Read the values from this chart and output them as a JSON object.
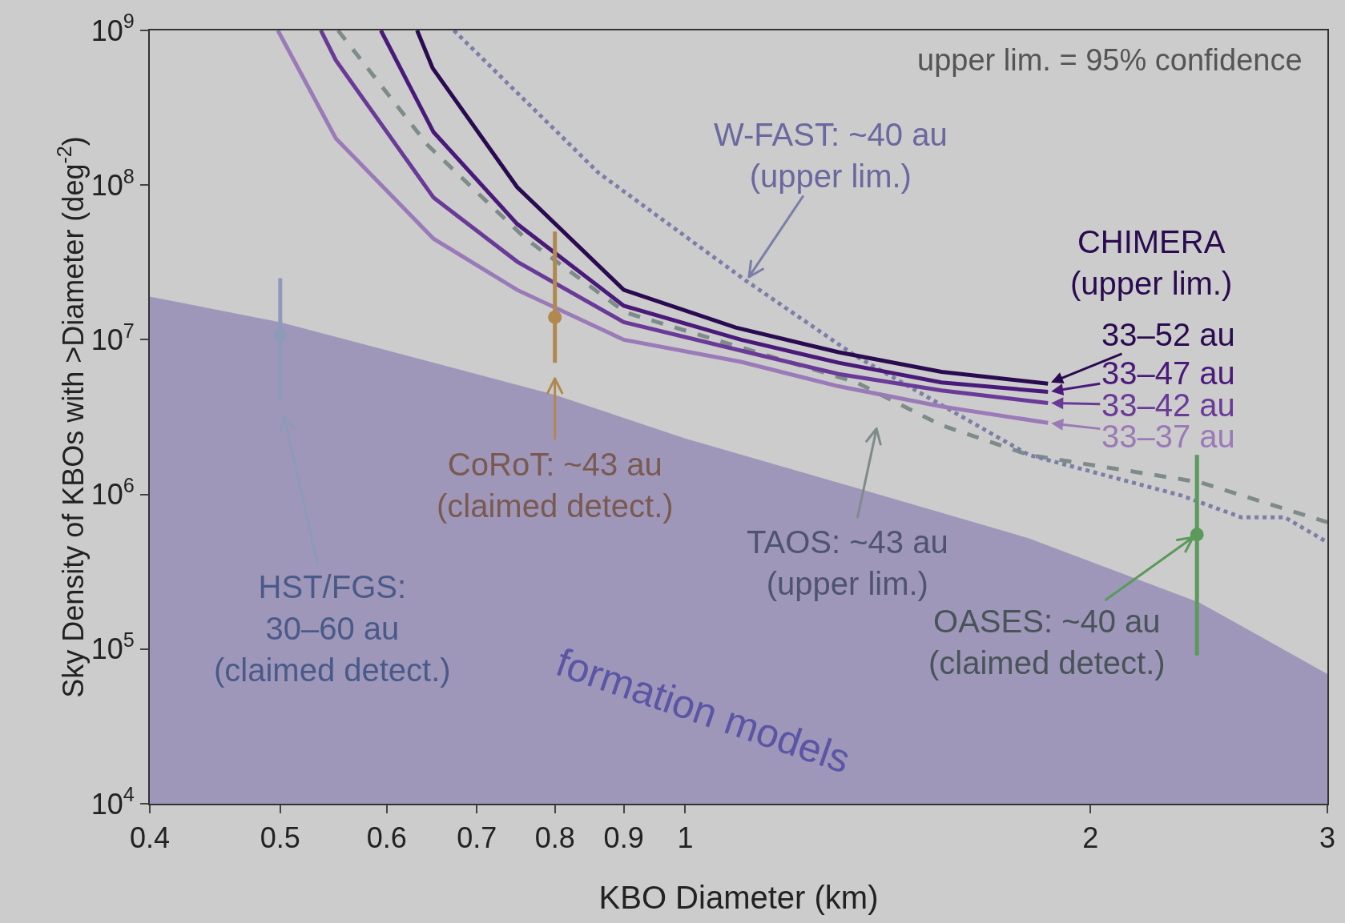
{
  "chart_data": {
    "type": "line",
    "xlabel": "KBO Diameter (km)",
    "ylabel": "Sky Density of KBOs with >Diameter (deg$^{-2}$)",
    "log": "xy",
    "grid": false,
    "legend": "right",
    "xlim": [
      0.4,
      3
    ],
    "ylim": [
      10000,
      1000000000
    ],
    "xticks": [
      0.4,
      0.5,
      0.6,
      0.7,
      0.8,
      0.9,
      1,
      2,
      3
    ],
    "yticks": [
      {
        "value": 10000,
        "label": "10$^{4}$"
      },
      {
        "value": 100000,
        "label": "10$^{5}$"
      },
      {
        "value": 1000000,
        "label": "10$^{6}$"
      },
      {
        "value": 10000000,
        "label": "10$^{7}$"
      },
      {
        "value": 100000000,
        "label": "10$^{8}$"
      },
      {
        "value": 1000000000,
        "label": "10$^{9}$"
      }
    ],
    "series": [
      {
        "type": "area",
        "color": "#9e97ba",
        "x": [
          0.4,
          0.5,
          0.8,
          1.0,
          1.34,
          1.8,
          2.41,
          3.0
        ],
        "values": [
          19000000,
          13000000,
          4400000,
          2300000,
          1100000,
          520000,
          200000,
          69000
        ]
      },
      {
        "type": "line",
        "line_style": "dashed",
        "color": "#7d8c8a",
        "x": [
          0.552,
          0.644,
          0.761,
          0.903,
          1.34,
          1.55,
          1.8,
          2.41,
          3.0
        ],
        "values": [
          1000000000,
          180000000,
          45000000,
          15000000,
          5300000,
          2800000,
          1800000,
          1200000,
          660000
        ]
      },
      {
        "type": "line",
        "line_style": "dotted",
        "color": "#7b7fa8",
        "x": [
          0.673,
          0.862,
          1.11,
          1.34,
          1.8,
          2.34,
          2.59,
          2.79,
          3.0
        ],
        "values": [
          1000000000,
          120000000,
          24000000,
          7800000,
          1800000,
          980000,
          710000,
          710000,
          490000
        ]
      },
      {
        "name": "33–37 au",
        "color": "#9a7ab8",
        "x": [
          0.498,
          0.55,
          0.65,
          0.75,
          0.9,
          1.1,
          1.3,
          1.55,
          1.86
        ],
        "values": [
          1000000000,
          200000000,
          45000000,
          21000000,
          10000000,
          7200000,
          5000000,
          3700000,
          2900000
        ]
      },
      {
        "name": "33–42 au",
        "color": "#6a3a98",
        "x": [
          0.536,
          0.55,
          0.65,
          0.75,
          0.9,
          1.1,
          1.3,
          1.55,
          1.86
        ],
        "values": [
          1000000000,
          640000000,
          83000000,
          32000000,
          13000000,
          8500000,
          6000000,
          4700000,
          3900000
        ]
      },
      {
        "name": "33–47 au",
        "color": "#4a1a7a",
        "x": [
          0.594,
          0.65,
          0.75,
          0.9,
          1.1,
          1.3,
          1.55,
          1.86
        ],
        "values": [
          1000000000,
          220000000,
          56000000,
          16600000,
          10000000,
          7100000,
          5300000,
          4600000
        ]
      },
      {
        "name": "33–52 au",
        "color": "#2a0a50",
        "x": [
          0.632,
          0.649,
          0.75,
          0.9,
          1.09,
          1.3,
          1.55,
          1.86
        ],
        "values": [
          1000000000,
          570000000,
          97000000,
          21000000,
          12000000,
          8300000,
          6200000,
          5200000
        ]
      },
      {
        "type": "scatter",
        "marker": "circle",
        "color": "#8d9bb8",
        "x": [
          0.5
        ],
        "values": [
          10700000
        ],
        "errors": [
          [
            4000000,
            25000000
          ]
        ]
      },
      {
        "type": "scatter",
        "marker": "circle",
        "color": "#b08850",
        "x": [
          0.8
        ],
        "values": [
          14000000
        ],
        "errors": [
          [
            7100000,
            50000000
          ]
        ]
      },
      {
        "type": "scatter",
        "marker": "circle",
        "color": "#5a9a5a",
        "x": [
          2.4
        ],
        "values": [
          550000
        ],
        "errors": [
          [
            91000,
            1800000
          ]
        ]
      }
    ],
    "annotations": [
      "upper lim. = 95% confidence",
      {
        "text": "W-FAST: ~40 au\n(upper lim.)",
        "x": 1.11,
        "y": 24000000
      },
      "CHIMERA\n(upper lim.)",
      "CoRoT: ~43 au\n(claimed detect.)",
      "HST/FGS:\n30–60 au\n(claimed detect.)",
      "TAOS: ~43 au\n(upper lim.)",
      {
        "text": "OASES: ~40 au\n(claimed detect.)",
        "x": 2.4,
        "y": 550000
      },
      "formation models"
    ]
  }
}
